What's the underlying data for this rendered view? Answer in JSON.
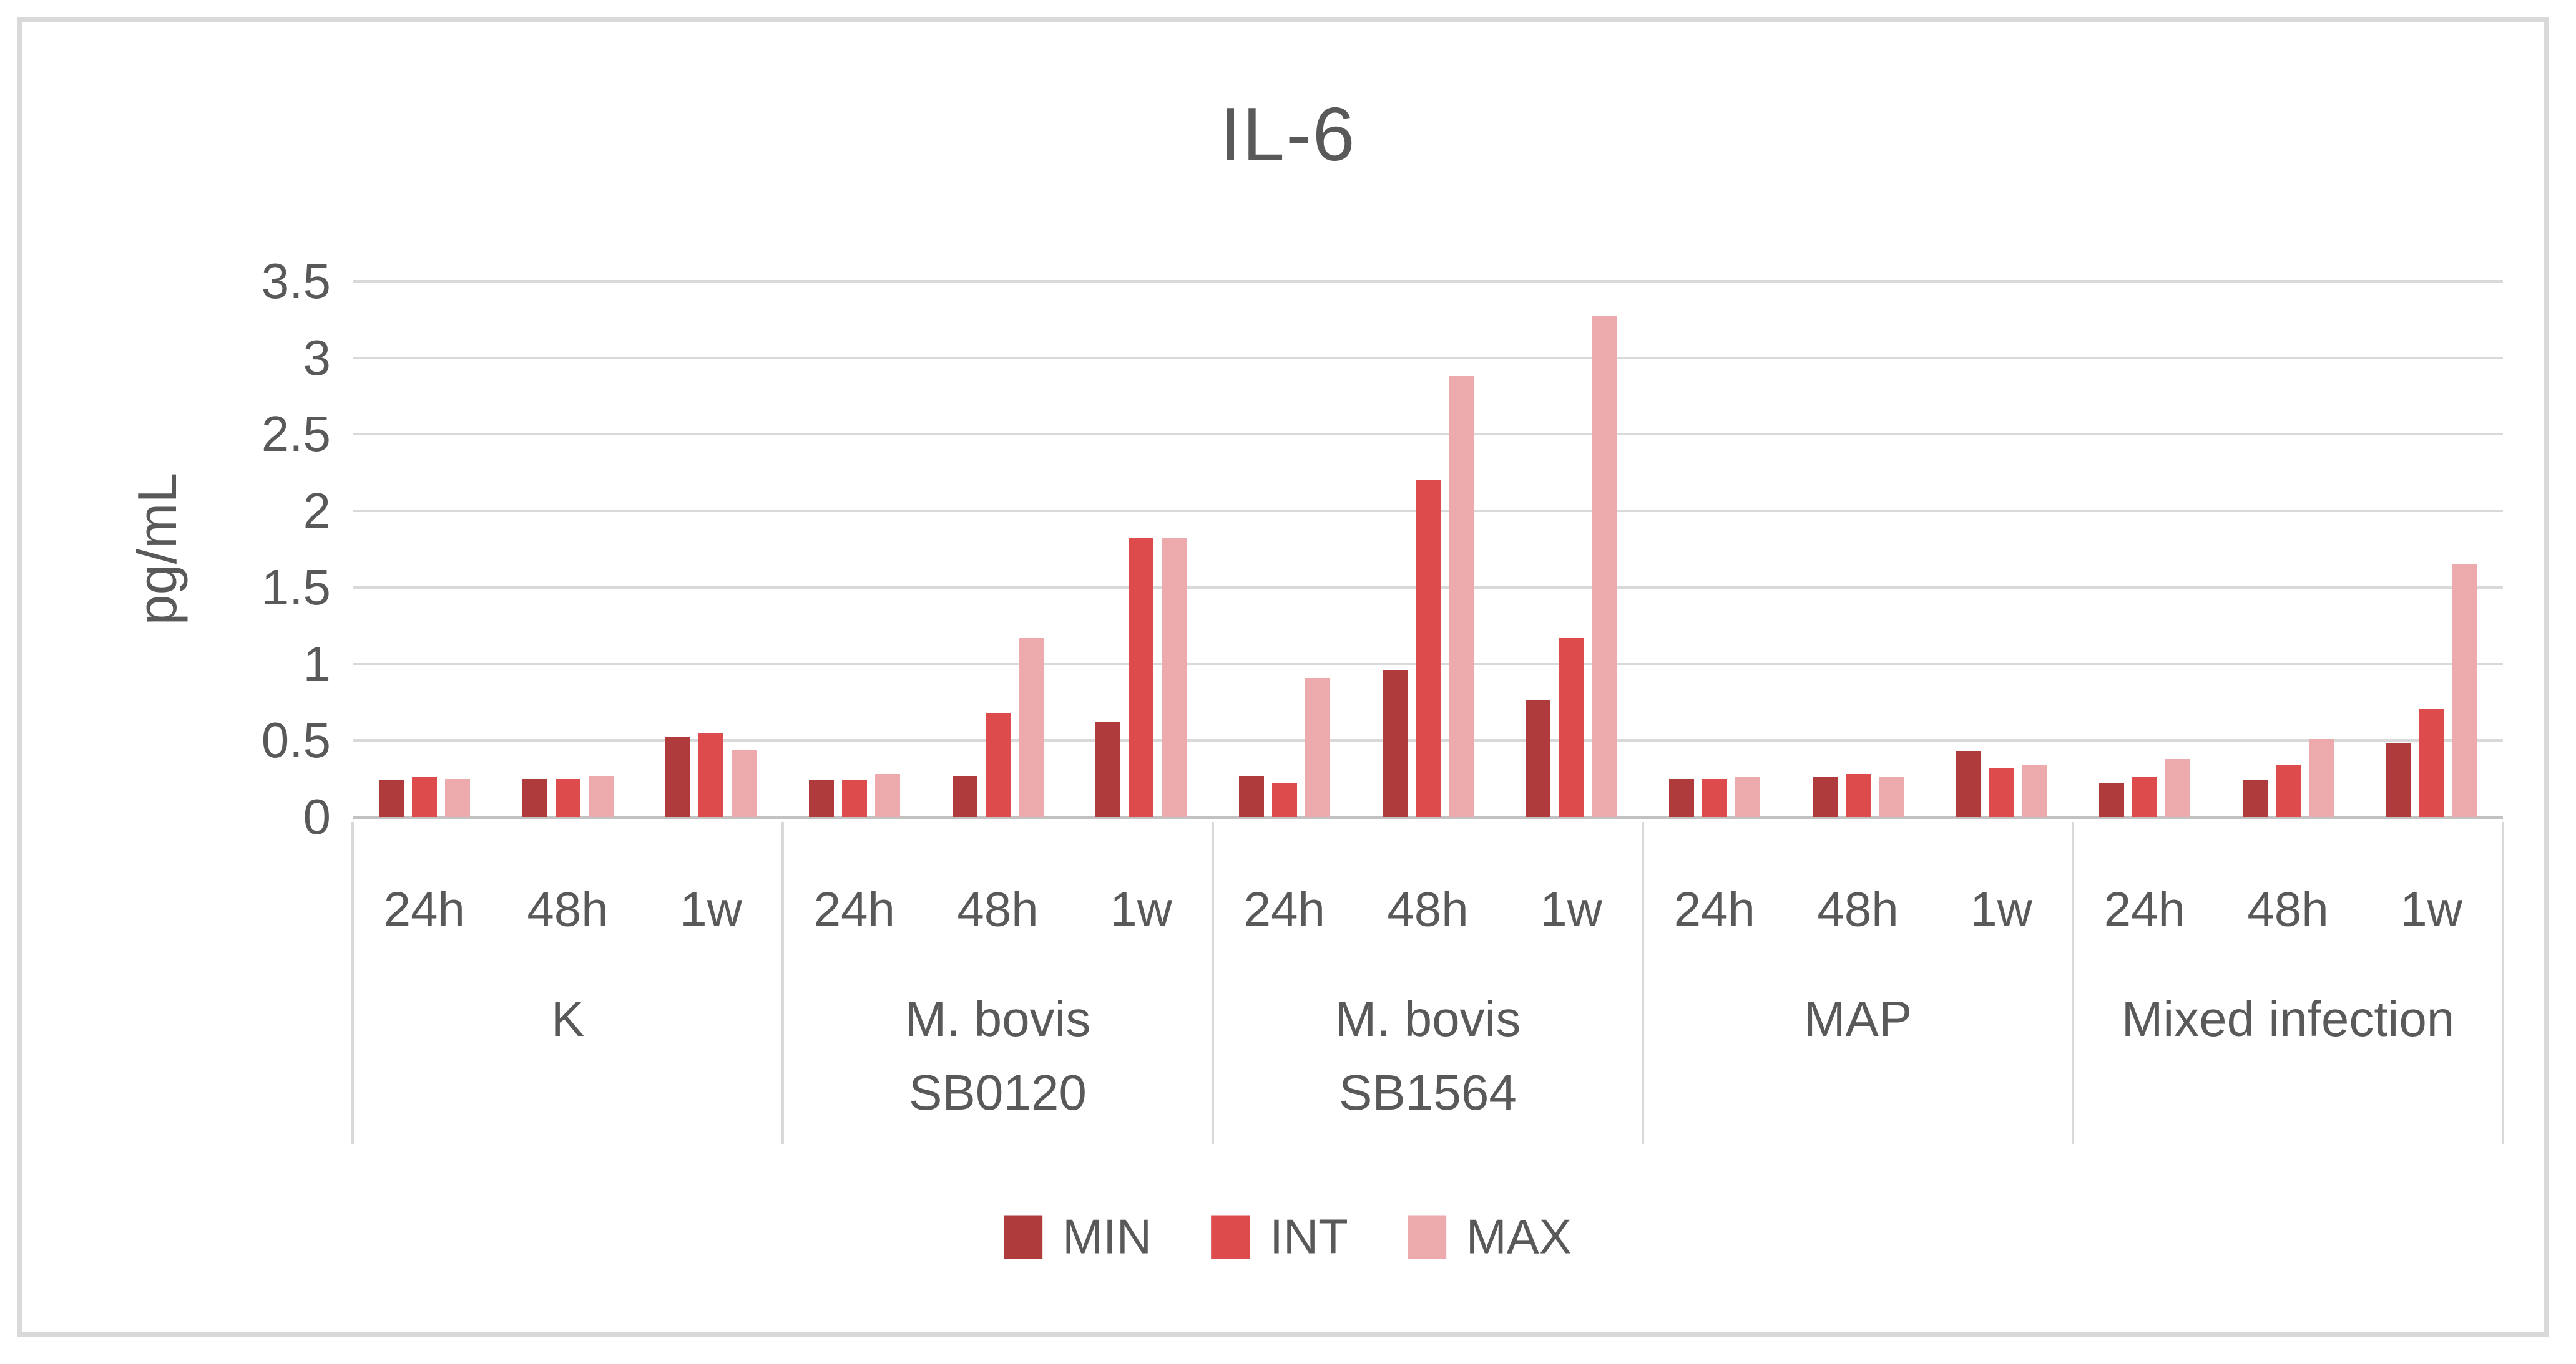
{
  "chart_data": {
    "type": "bar",
    "title": "IL-6",
    "ylabel": "pg/mL",
    "ylim": [
      0,
      3.5
    ],
    "ytick_step": 0.5,
    "y_ticks": [
      "0",
      "0.5",
      "1",
      "1.5",
      "2",
      "2.5",
      "3",
      "3.5"
    ],
    "grid": true,
    "legend_position": "bottom",
    "categories": [
      "K",
      "M. bovis SB0120",
      "M. bovis SB1564",
      "MAP",
      "Mixed infection"
    ],
    "category_lines": [
      [
        "K"
      ],
      [
        "M. bovis",
        "SB0120"
      ],
      [
        "M. bovis",
        "SB1564"
      ],
      [
        "MAP"
      ],
      [
        "Mixed infection"
      ]
    ],
    "sub_categories": [
      "24h",
      "48h",
      "1w"
    ],
    "series": [
      {
        "name": "MIN",
        "color": "#b03b3d",
        "values": [
          0.24,
          0.25,
          0.52,
          0.24,
          0.27,
          0.62,
          0.27,
          0.96,
          0.76,
          0.25,
          0.26,
          0.43,
          0.22,
          0.24,
          0.48
        ]
      },
      {
        "name": "INT",
        "color": "#dd4b4d",
        "values": [
          0.26,
          0.25,
          0.55,
          0.24,
          0.68,
          1.82,
          0.22,
          2.2,
          1.17,
          0.25,
          0.28,
          0.32,
          0.26,
          0.34,
          0.71
        ]
      },
      {
        "name": "MAX",
        "color": "#ecaaad",
        "values": [
          0.25,
          0.27,
          0.44,
          0.28,
          1.17,
          1.82,
          0.91,
          2.88,
          3.27,
          0.26,
          0.26,
          0.34,
          0.38,
          0.51,
          1.65
        ]
      }
    ],
    "colors": {
      "text": "#595959",
      "gridline": "#d9d9d9",
      "axis_line": "#c2c2c2",
      "frame_border": "#d9d9d9",
      "background": "#ffffff"
    }
  }
}
